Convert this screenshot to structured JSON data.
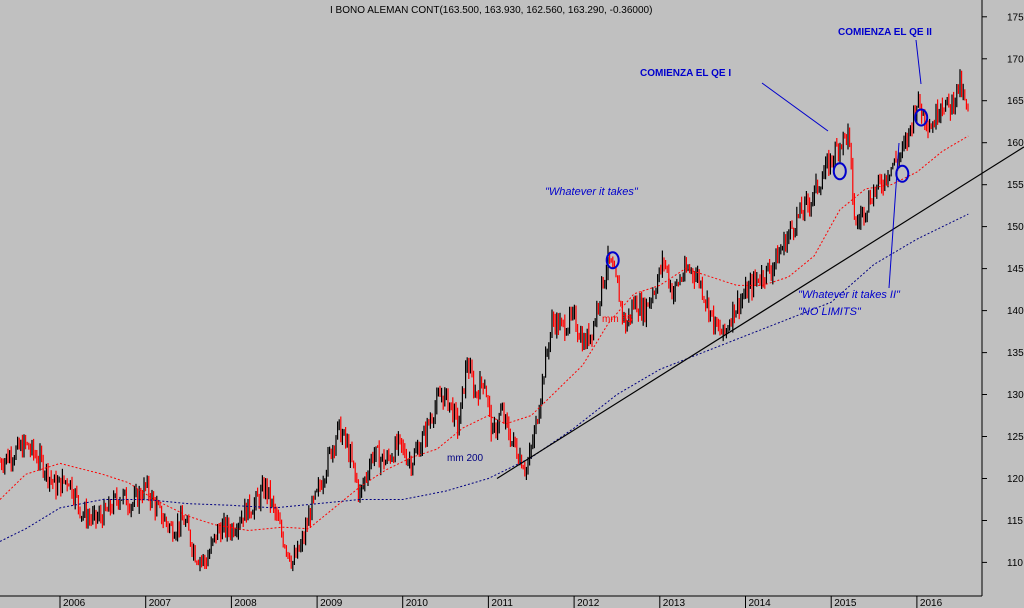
{
  "chart_data": {
    "type": "line",
    "title": "I BONO ALEMAN CONT(163.500, 163.930, 162.560, 163.290, -0.36000)",
    "xlabel": "",
    "ylabel": "",
    "x_ticks": [
      "2006",
      "2007",
      "2008",
      "2009",
      "2010",
      "2011",
      "2012",
      "2013",
      "2014",
      "2015",
      "2016"
    ],
    "y_ticks": [
      110,
      115,
      120,
      125,
      130,
      135,
      140,
      145,
      150,
      155,
      160,
      165,
      170,
      175
    ],
    "ylim": [
      106,
      177
    ],
    "xlim": [
      2005.3,
      2017.25
    ],
    "grid": false,
    "colors": {
      "background": "#c0c0c0",
      "price_up": "#000000",
      "price_down": "#ff0000",
      "ma65": "#ff0000",
      "ma200": "#000080",
      "trendline": "#000000",
      "annotation": "#0000cc"
    },
    "series": [
      {
        "name": "price",
        "x": [
          2005.3,
          2005.45,
          2005.6,
          2005.78,
          2005.95,
          2006.1,
          2006.25,
          2006.4,
          2006.55,
          2006.7,
          2006.85,
          2007.0,
          2007.15,
          2007.3,
          2007.45,
          2007.58,
          2007.7,
          2007.85,
          2008.0,
          2008.15,
          2008.28,
          2008.4,
          2008.5,
          2008.6,
          2008.72,
          2008.82,
          2008.92,
          2009.0,
          2009.12,
          2009.25,
          2009.35,
          2009.5,
          2009.65,
          2009.8,
          2009.95,
          2010.1,
          2010.25,
          2010.35,
          2010.45,
          2010.55,
          2010.65,
          2010.75,
          2010.85,
          2010.95,
          2011.05,
          2011.15,
          2011.25,
          2011.35,
          2011.45,
          2011.55,
          2011.65,
          2011.75,
          2011.85,
          2012.0,
          2012.12,
          2012.22,
          2012.3,
          2012.4,
          2012.5,
          2012.6,
          2012.7,
          2012.82,
          2012.95,
          2013.05,
          2013.15,
          2013.25,
          2013.35,
          2013.45,
          2013.55,
          2013.65,
          2013.75,
          2013.85,
          2014.0,
          2014.15,
          2014.3,
          2014.45,
          2014.6,
          2014.75,
          2014.9,
          2015.0,
          2015.1,
          2015.2,
          2015.28,
          2015.38,
          2015.48,
          2015.58,
          2015.68,
          2015.78,
          2015.88,
          2016.0,
          2016.1,
          2016.18,
          2016.28,
          2016.38,
          2016.5,
          2016.6
        ],
        "y": [
          122,
          123,
          124,
          122,
          119,
          120,
          116,
          115,
          116,
          118,
          117,
          119,
          116,
          114,
          115,
          111,
          110,
          114,
          114,
          116,
          117,
          119,
          116,
          113,
          110,
          112,
          116,
          118,
          122,
          126,
          124,
          118,
          123,
          122,
          124,
          122,
          125,
          128,
          130,
          129,
          126,
          134,
          130,
          132,
          125,
          128,
          125,
          123,
          121,
          126,
          133,
          139,
          138,
          139,
          136,
          138,
          142,
          146,
          143,
          138,
          141,
          140,
          143,
          146,
          142,
          144,
          145,
          144,
          141,
          138,
          137,
          140,
          142,
          144,
          145,
          148,
          151,
          153,
          156,
          158,
          160,
          161,
          150,
          152,
          154,
          155,
          157,
          158,
          160,
          165,
          163,
          162,
          165,
          164,
          167,
          163
        ]
      },
      {
        "name": "mm 65",
        "x": [
          2005.3,
          2005.6,
          2006.0,
          2006.5,
          2006.8,
          2007.1,
          2007.5,
          2007.8,
          2008.2,
          2008.6,
          2008.9,
          2009.2,
          2009.5,
          2009.8,
          2010.1,
          2010.4,
          2010.7,
          2011.0,
          2011.2,
          2011.5,
          2011.8,
          2012.1,
          2012.4,
          2012.7,
          2013.0,
          2013.3,
          2013.6,
          2013.9,
          2014.2,
          2014.5,
          2014.8,
          2015.1,
          2015.4,
          2015.7,
          2016.0,
          2016.3,
          2016.6
        ],
        "y": [
          117.5,
          120.5,
          121.8,
          120.5,
          119.5,
          117.5,
          115.5,
          114.5,
          113.8,
          114.2,
          114.0,
          116.5,
          119.0,
          121.0,
          122.5,
          123.5,
          126.0,
          127.5,
          126.5,
          127.5,
          130.5,
          133.5,
          138.5,
          142.0,
          143.0,
          145.0,
          144.0,
          143.0,
          143.0,
          144.0,
          146.5,
          152.0,
          154.5,
          155.0,
          156.5,
          159.0,
          160.8
        ]
      },
      {
        "name": "mm 200",
        "x": [
          2005.3,
          2005.6,
          2006.0,
          2006.5,
          2007.0,
          2007.5,
          2008.0,
          2008.5,
          2009.0,
          2009.5,
          2010.0,
          2010.5,
          2011.0,
          2011.5,
          2012.0,
          2012.5,
          2013.0,
          2013.5,
          2014.0,
          2014.5,
          2015.0,
          2015.5,
          2016.0,
          2016.3,
          2016.6
        ],
        "y": [
          112.5,
          114.0,
          116.5,
          117.5,
          117.5,
          117.0,
          116.8,
          116.5,
          117.0,
          117.5,
          117.5,
          118.5,
          120.0,
          122.5,
          126.0,
          130.0,
          133.0,
          135.0,
          137.0,
          139.0,
          141.0,
          145.5,
          148.5,
          150.0,
          151.5
        ]
      }
    ],
    "trendline": {
      "x": [
        2011.1,
        2017.25
      ],
      "y": [
        120.0,
        159.5
      ]
    },
    "annotations": {
      "mm65_label": "mm 65",
      "mm200_label": "mm 200",
      "whatever": "\"Whatever it takes\"",
      "qe1": "COMIENZA EL QE I",
      "qe2": "COMIENZA EL QE II",
      "whatever2_line1": "\"Whatever it takes II\"",
      "whatever2_line2": "\"NO LIMITS\""
    },
    "markers": [
      {
        "x": 2012.45,
        "y": 146.0
      },
      {
        "x": 2015.1,
        "y": 156.6
      },
      {
        "x": 2015.83,
        "y": 156.3
      },
      {
        "x": 2016.05,
        "y": 163.0
      }
    ]
  }
}
